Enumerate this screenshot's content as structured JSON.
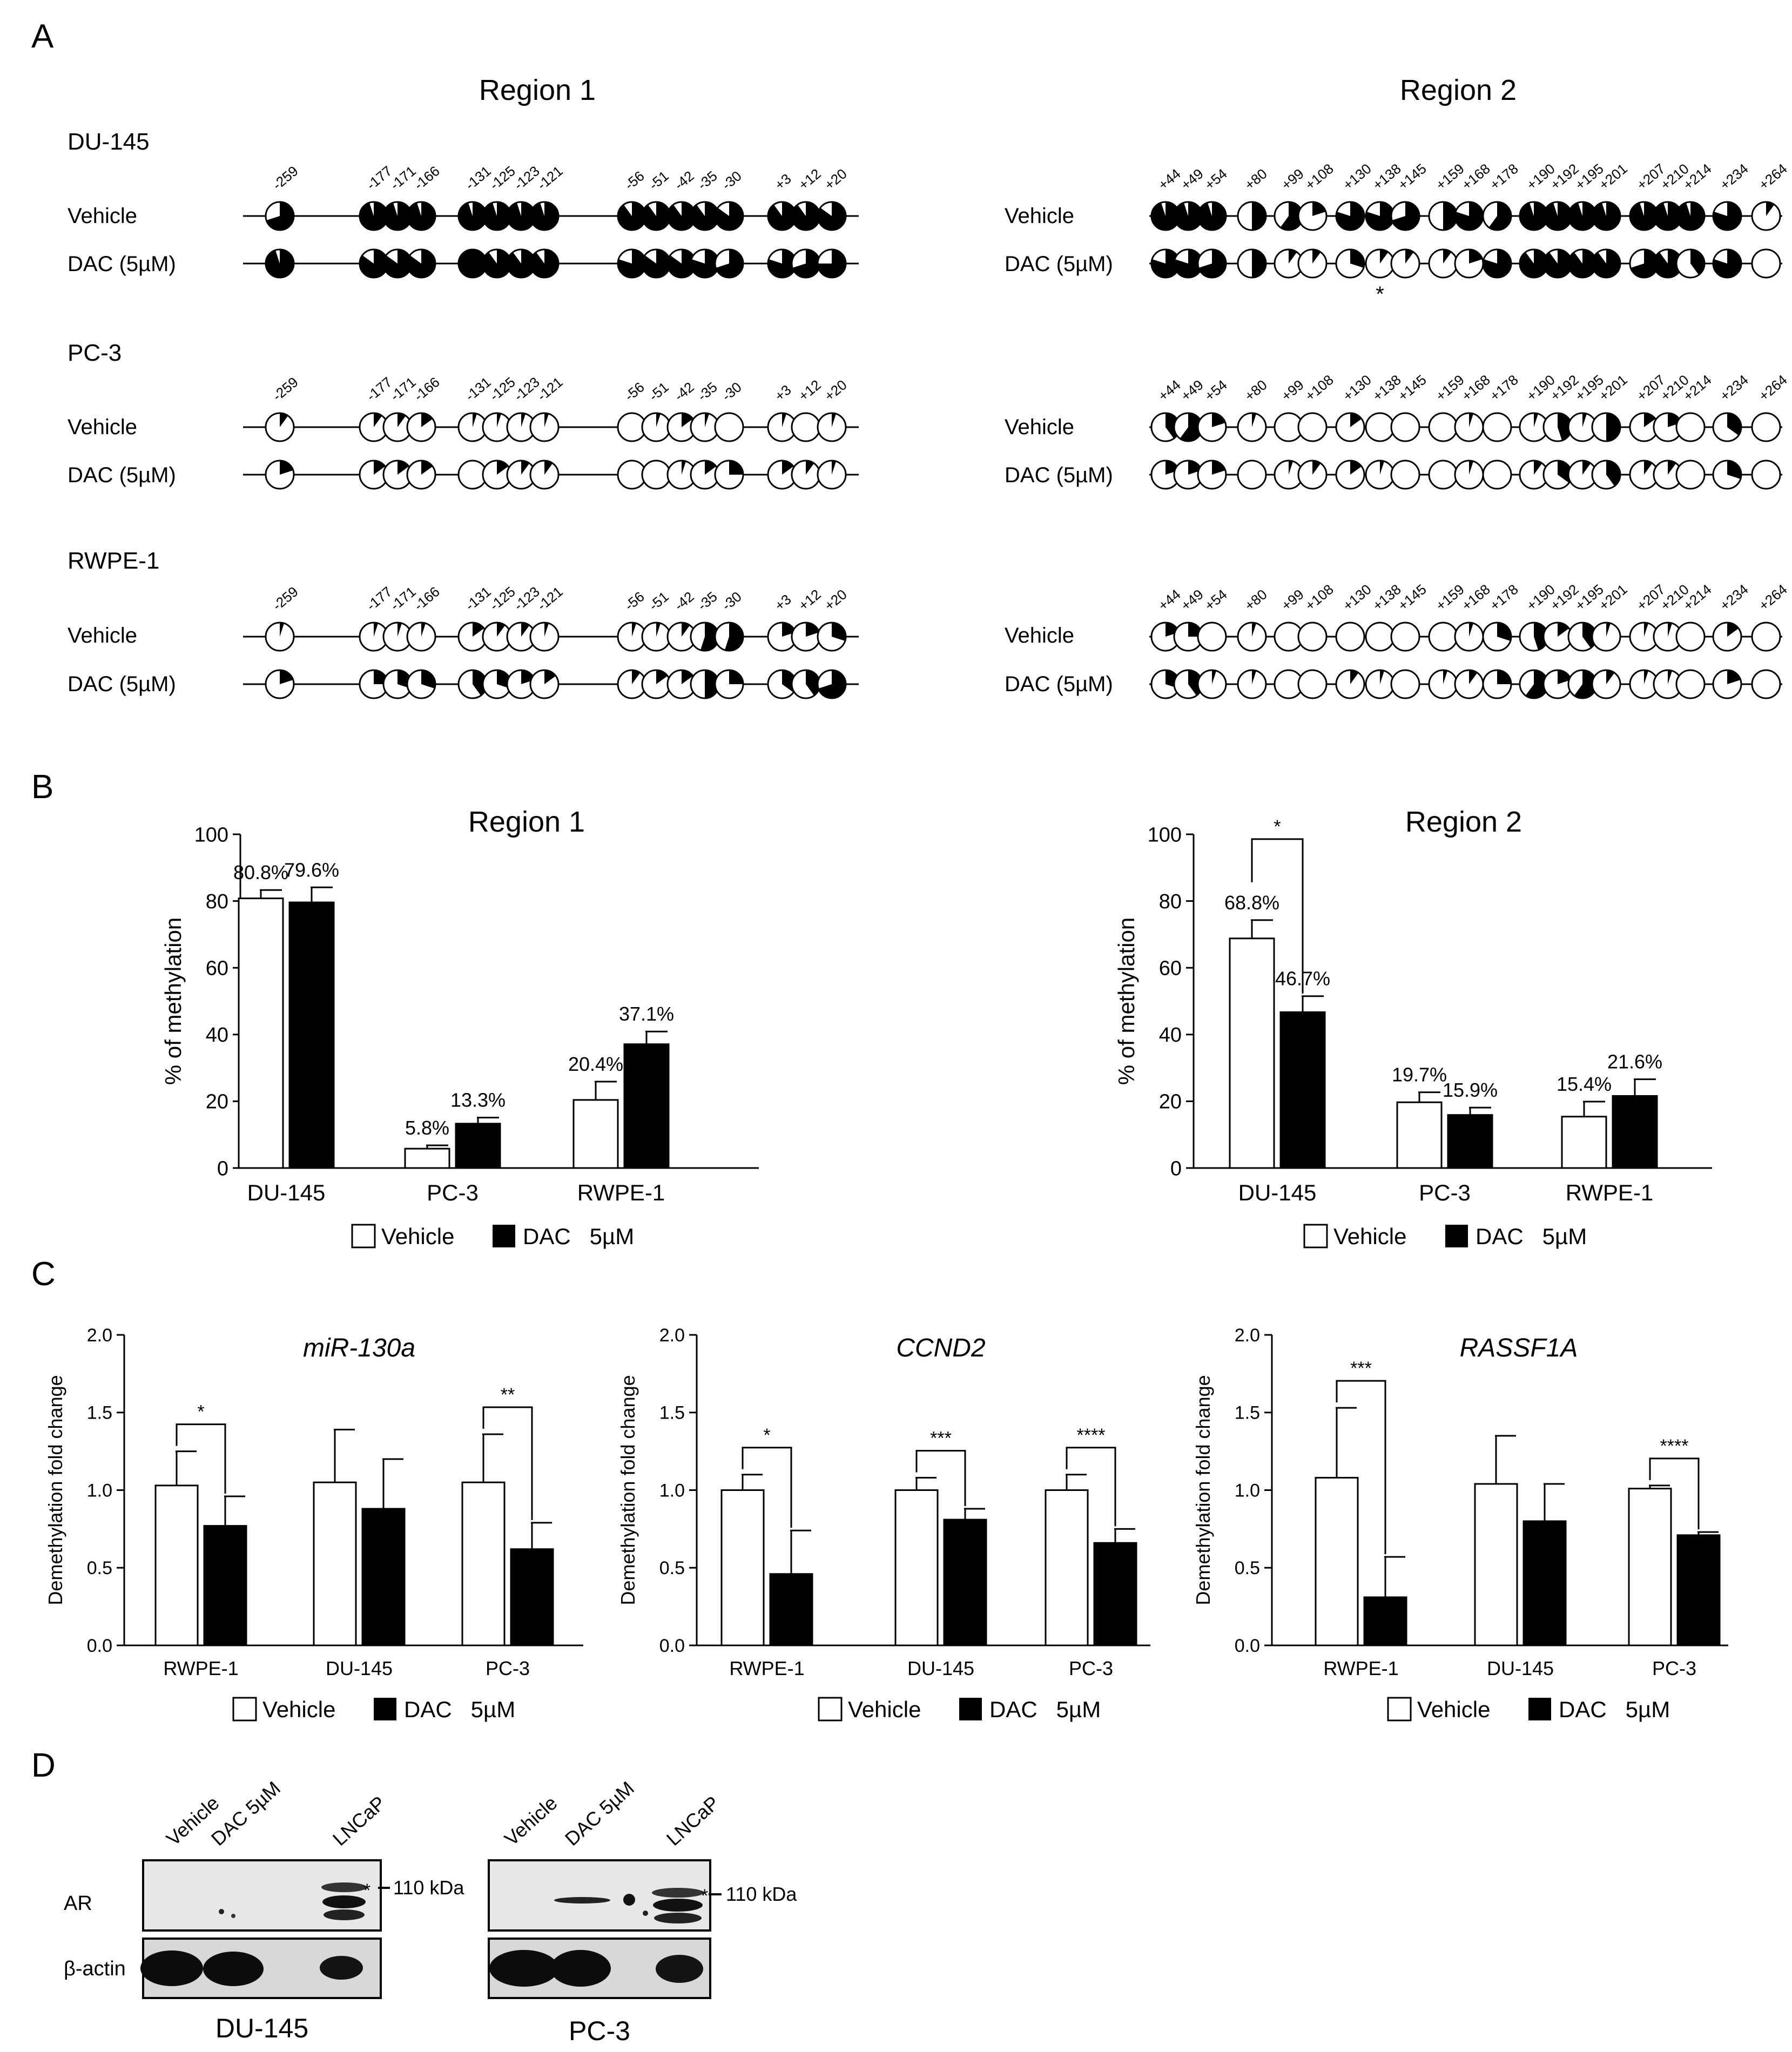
{
  "panel_a": {
    "label": "A",
    "region1_title": "Region 1",
    "region2_title": "Region 2",
    "region1_positions": [
      "-259",
      "-177",
      "-171",
      "-166",
      "-131",
      "-125",
      "-123",
      "-121",
      "-56",
      "-51",
      "-42",
      "-35",
      "-30",
      "+3",
      "+12",
      "+20"
    ],
    "region2_positions": [
      "+44",
      "+49",
      "+54",
      "+80",
      "+99",
      "+108",
      "+130",
      "+138",
      "+145",
      "+159",
      "+168",
      "+178",
      "+190",
      "+192",
      "+195",
      "+201",
      "+207",
      "+210",
      "+214",
      "+234",
      "+264"
    ],
    "significance_mark": "*",
    "cells": [
      {
        "name": "DU-145",
        "rows": [
          {
            "label": "Vehicle",
            "r1": [
              0.7,
              0.95,
              0.95,
              0.95,
              0.95,
              0.95,
              0.95,
              0.95,
              0.9,
              0.9,
              0.9,
              0.9,
              0.85,
              0.9,
              0.9,
              0.85
            ],
            "r2": [
              0.95,
              0.95,
              0.95,
              0.5,
              0.6,
              0.2,
              0.8,
              0.8,
              0.7,
              0.5,
              0.8,
              0.6,
              0.95,
              0.95,
              0.95,
              0.95,
              0.95,
              0.95,
              0.95,
              0.8,
              0.1
            ]
          },
          {
            "label": "DAC (5µM)",
            "r1": [
              0.95,
              0.85,
              0.85,
              0.85,
              1.0,
              0.9,
              0.9,
              0.9,
              0.8,
              0.85,
              0.85,
              0.8,
              0.7,
              0.8,
              0.7,
              0.75
            ],
            "r2": [
              0.8,
              0.8,
              0.7,
              0.5,
              0.1,
              0.1,
              0.3,
              0.1,
              0.1,
              0.1,
              0.2,
              0.8,
              0.9,
              0.9,
              0.9,
              0.9,
              0.7,
              0.9,
              0.4,
              0.8,
              0.0
            ]
          }
        ]
      },
      {
        "name": "PC-3",
        "rows": [
          {
            "label": "Vehicle",
            "r1": [
              0.1,
              0.1,
              0.1,
              0.15,
              0.05,
              0.05,
              0.05,
              0.05,
              0.0,
              0.05,
              0.15,
              0.05,
              0.0,
              0.05,
              0.0,
              0.05
            ],
            "r2": [
              0.4,
              0.6,
              0.2,
              0.05,
              0.0,
              0.0,
              0.15,
              0.0,
              0.0,
              0.0,
              0.05,
              0.0,
              0.05,
              0.45,
              0.05,
              0.5,
              0.15,
              0.2,
              0.0,
              0.35,
              0.0
            ]
          },
          {
            "label": "DAC (5µM)",
            "r1": [
              0.2,
              0.15,
              0.15,
              0.15,
              0.0,
              0.15,
              0.1,
              0.1,
              0.0,
              0.0,
              0.05,
              0.15,
              0.25,
              0.15,
              0.1,
              0.05
            ],
            "r2": [
              0.2,
              0.2,
              0.2,
              0.0,
              0.05,
              0.1,
              0.15,
              0.05,
              0.0,
              0.0,
              0.05,
              0.0,
              0.1,
              0.35,
              0.1,
              0.4,
              0.1,
              0.1,
              0.0,
              0.3,
              0.0
            ]
          }
        ]
      },
      {
        "name": "RWPE-1",
        "rows": [
          {
            "label": "Vehicle",
            "r1": [
              0.05,
              0.05,
              0.05,
              0.05,
              0.15,
              0.1,
              0.1,
              0.05,
              0.05,
              0.05,
              0.1,
              0.55,
              0.55,
              0.2,
              0.2,
              0.3
            ],
            "r2": [
              0.2,
              0.25,
              0.0,
              0.05,
              0.0,
              0.0,
              0.0,
              0.0,
              0.0,
              0.0,
              0.05,
              0.3,
              0.45,
              0.15,
              0.4,
              0.05,
              0.05,
              0.05,
              0.0,
              0.15,
              0.0
            ]
          },
          {
            "label": "DAC (5µM)",
            "r1": [
              0.2,
              0.25,
              0.3,
              0.3,
              0.4,
              0.3,
              0.2,
              0.15,
              0.1,
              0.15,
              0.15,
              0.5,
              0.25,
              0.35,
              0.4,
              0.7
            ],
            "r2": [
              0.3,
              0.4,
              0.05,
              0.05,
              0.0,
              0.0,
              0.1,
              0.05,
              0.0,
              0.05,
              0.1,
              0.25,
              0.6,
              0.2,
              0.6,
              0.1,
              0.05,
              0.05,
              0.0,
              0.2,
              0.0
            ]
          }
        ]
      }
    ]
  },
  "panel_b": {
    "label": "B",
    "legend_vehicle": "Vehicle",
    "legend_dac": "DAC   5µM"
  },
  "panel_c": {
    "label": "C",
    "legend_vehicle": "Vehicle",
    "legend_dac": "DAC   5µM"
  },
  "panel_d": {
    "label": "D",
    "lane_labels": [
      "Vehicle",
      "DAC 5µM",
      "LNCaP"
    ],
    "row_ar": "AR",
    "row_actin": "β-actin",
    "marker": "110 kDa",
    "star": "*",
    "blots": [
      {
        "name": "DU-145",
        "dac_band": false
      },
      {
        "name": "PC-3",
        "dac_band": true
      }
    ]
  },
  "chart_data": [
    {
      "type": "bar",
      "title": "Region 1",
      "ylabel": "% of methylation",
      "ylim": [
        0,
        100
      ],
      "yticks": [
        0,
        20,
        40,
        60,
        80,
        100
      ],
      "categories": [
        "DU-145",
        "PC-3",
        "RWPE-1"
      ],
      "series": [
        {
          "name": "Vehicle",
          "values": [
            80.8,
            5.8,
            20.4
          ],
          "errors": [
            2.5,
            1.0,
            5.5
          ],
          "labels": [
            "80.8%",
            "5.8%",
            "20.4%"
          ]
        },
        {
          "name": "DAC   5µM",
          "values": [
            79.6,
            13.3,
            37.1
          ],
          "errors": [
            4.5,
            1.8,
            3.8
          ],
          "labels": [
            "79.6%",
            "13.3%",
            "37.1%"
          ]
        }
      ],
      "significance": []
    },
    {
      "type": "bar",
      "title": "Region 2",
      "ylabel": "% of methylation",
      "ylim": [
        0,
        100
      ],
      "yticks": [
        0,
        20,
        40,
        60,
        80,
        100
      ],
      "categories": [
        "DU-145",
        "PC-3",
        "RWPE-1"
      ],
      "series": [
        {
          "name": "Vehicle",
          "values": [
            68.8,
            19.7,
            15.4
          ],
          "errors": [
            5.5,
            3.0,
            4.5
          ],
          "labels": [
            "68.8%",
            "19.7%",
            "15.4%"
          ]
        },
        {
          "name": "DAC   5µM",
          "values": [
            46.7,
            15.9,
            21.6
          ],
          "errors": [
            4.8,
            2.2,
            5.0
          ],
          "labels": [
            "46.7%",
            "15.9%",
            "21.6%"
          ]
        }
      ],
      "significance": [
        {
          "group": 0,
          "mark": "*"
        }
      ]
    },
    {
      "type": "bar",
      "title": "miR-130a",
      "ylabel": "Demethylation fold change",
      "ylim": [
        0,
        2
      ],
      "yticks": [
        "0.0",
        "0.5",
        "1.0",
        "1.5",
        "2.0"
      ],
      "categories": [
        "RWPE-1",
        "DU-145",
        "PC-3"
      ],
      "series": [
        {
          "name": "Vehicle",
          "values": [
            1.03,
            1.05,
            1.05
          ],
          "errors": [
            0.22,
            0.34,
            0.31
          ]
        },
        {
          "name": "DAC   5µM",
          "values": [
            0.77,
            0.88,
            0.62
          ],
          "errors": [
            0.19,
            0.32,
            0.17
          ]
        }
      ],
      "significance": [
        {
          "group": 0,
          "mark": "*"
        },
        {
          "group": 2,
          "mark": "**"
        }
      ]
    },
    {
      "type": "bar",
      "title": "CCND2",
      "ylabel": "Demethylation fold change",
      "ylim": [
        0,
        2
      ],
      "yticks": [
        "0.0",
        "0.5",
        "1.0",
        "1.5",
        "2.0"
      ],
      "categories": [
        "RWPE-1",
        "DU-145",
        "PC-3"
      ],
      "series": [
        {
          "name": "Vehicle",
          "values": [
            1.0,
            1.0,
            1.0
          ],
          "errors": [
            0.1,
            0.08,
            0.1
          ]
        },
        {
          "name": "DAC   5µM",
          "values": [
            0.46,
            0.81,
            0.66
          ],
          "errors": [
            0.28,
            0.07,
            0.09
          ]
        }
      ],
      "significance": [
        {
          "group": 0,
          "mark": "*"
        },
        {
          "group": 1,
          "mark": "***"
        },
        {
          "group": 2,
          "mark": "****"
        }
      ]
    },
    {
      "type": "bar",
      "title": "RASSF1A",
      "ylabel": "Demethylation fold change",
      "ylim": [
        0,
        2
      ],
      "yticks": [
        "0.0",
        "0.5",
        "1.0",
        "1.5",
        "2.0"
      ],
      "categories": [
        "RWPE-1",
        "DU-145",
        "PC-3"
      ],
      "series": [
        {
          "name": "Vehicle",
          "values": [
            1.08,
            1.04,
            1.01
          ],
          "errors": [
            0.45,
            0.31,
            0.02
          ]
        },
        {
          "name": "DAC   5µM",
          "values": [
            0.31,
            0.8,
            0.71
          ],
          "errors": [
            0.26,
            0.24,
            0.02
          ]
        }
      ],
      "significance": [
        {
          "group": 0,
          "mark": "***"
        },
        {
          "group": 2,
          "mark": "****"
        }
      ]
    }
  ]
}
